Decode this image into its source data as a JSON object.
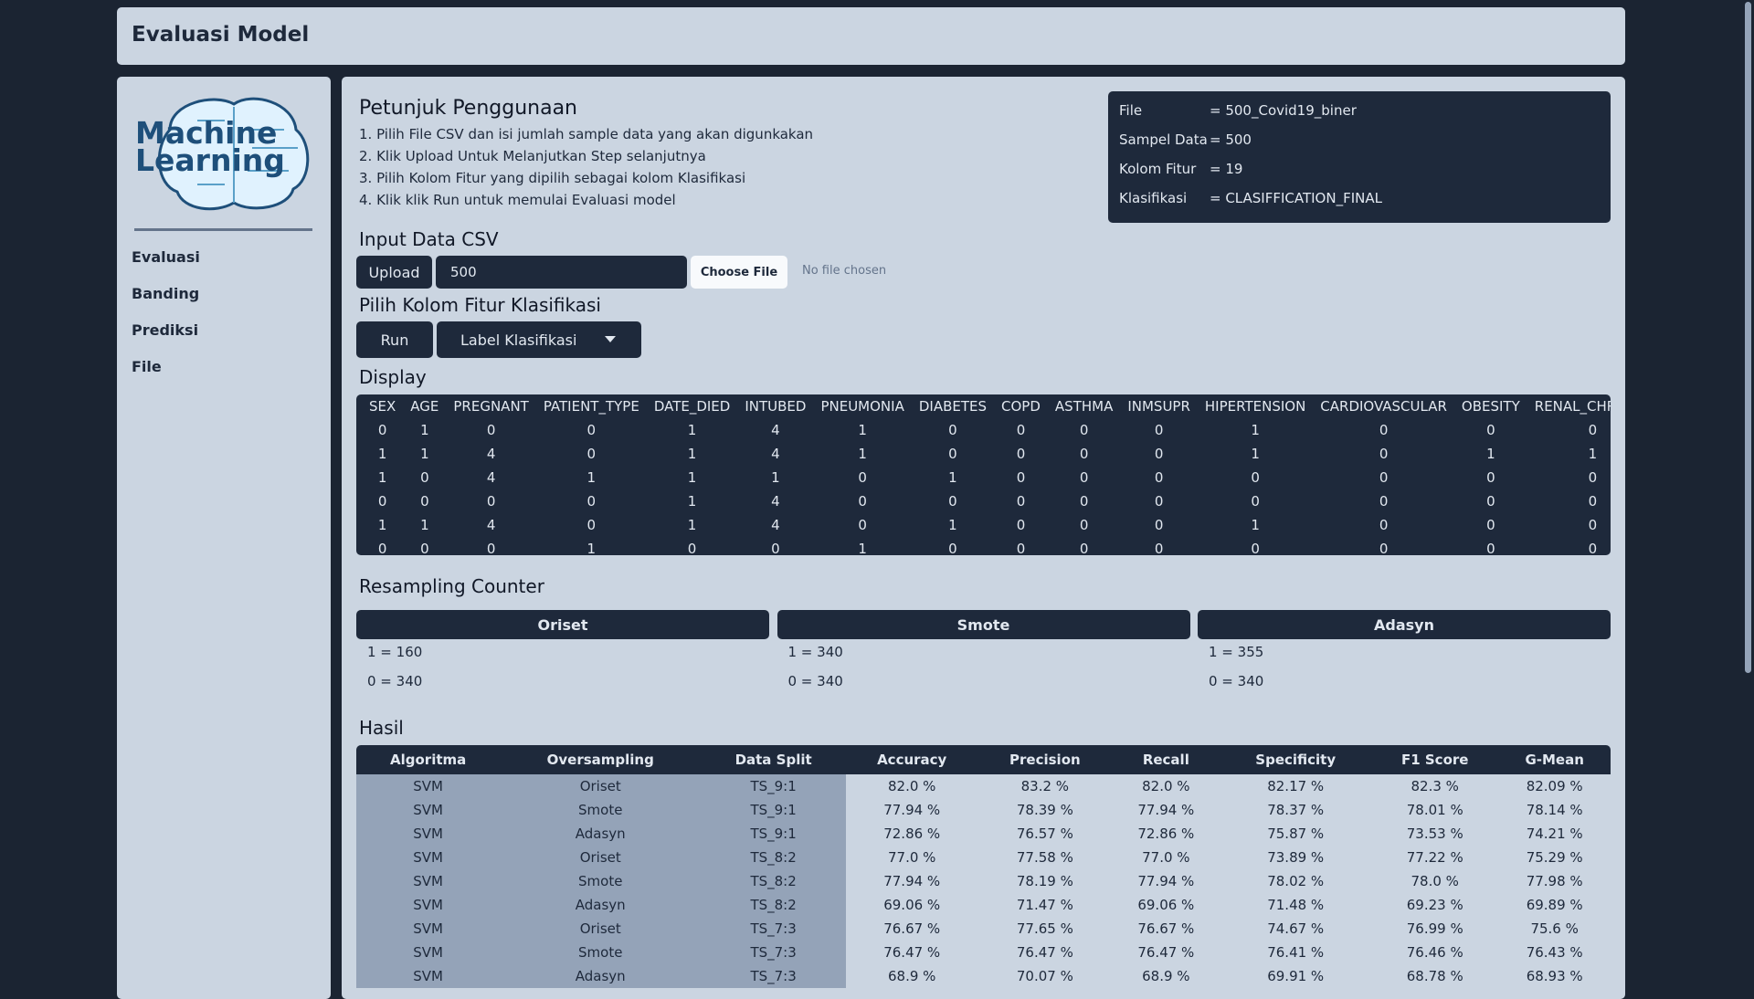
{
  "header": {
    "title": "Evaluasi Model"
  },
  "sidebar": {
    "logo": [
      "Machine",
      "Learning"
    ],
    "nav": [
      "Evaluasi",
      "Banding",
      "Prediksi",
      "File"
    ]
  },
  "guide": {
    "title": "Petunjuk Penggunaan",
    "steps": [
      "1. Pilih File CSV dan isi jumlah sample data yang akan digunkakan",
      "2. Klik Upload Untuk Melanjutkan Step selanjutnya",
      "3. Pilih Kolom Fitur yang dipilih sebagai kolom Klasifikasi",
      "4. Klik klik Run untuk memulai Evaluasi model"
    ]
  },
  "info": {
    "rows": [
      [
        "File",
        "= 500_Covid19_biner"
      ],
      [
        "Sampel Data",
        "= 500"
      ],
      [
        "Kolom Fitur",
        "= 19"
      ],
      [
        "Klasifikasi",
        "= CLASIFFICATION_FINAL"
      ]
    ]
  },
  "input": {
    "title": "Input Data CSV",
    "upload_button": "Upload",
    "input_value": "500",
    "choose_file": "Choose File",
    "no_file": "No file chosen"
  },
  "features": {
    "title": "Pilih Kolom Fitur Klasifikasi",
    "run_button": "Run",
    "dropdown": "Label Klasifikasi"
  },
  "display": {
    "title": "Display",
    "columns": [
      "SEX",
      "AGE",
      "PREGNANT",
      "PATIENT_TYPE",
      "DATE_DIED",
      "INTUBED",
      "PNEUMONIA",
      "DIABETES",
      "COPD",
      "ASTHMA",
      "INMSUPR",
      "HIPERTENSION",
      "CARDIOVASCULAR",
      "OBESITY",
      "RENAL_CHRONIC"
    ],
    "rows": [
      [
        0,
        1,
        0,
        0,
        1,
        4,
        1,
        0,
        0,
        0,
        0,
        1,
        0,
        0,
        0
      ],
      [
        1,
        1,
        4,
        0,
        1,
        4,
        1,
        0,
        0,
        0,
        0,
        1,
        0,
        1,
        1
      ],
      [
        1,
        0,
        4,
        1,
        1,
        1,
        0,
        1,
        0,
        0,
        0,
        0,
        0,
        0,
        0
      ],
      [
        0,
        0,
        0,
        0,
        1,
        4,
        0,
        0,
        0,
        0,
        0,
        0,
        0,
        0,
        0
      ],
      [
        1,
        1,
        4,
        0,
        1,
        4,
        0,
        1,
        0,
        0,
        0,
        1,
        0,
        0,
        0
      ],
      [
        0,
        0,
        0,
        1,
        0,
        0,
        1,
        0,
        0,
        0,
        0,
        0,
        0,
        0,
        0
      ]
    ]
  },
  "resampling": {
    "title": "Resampling Counter",
    "groups": [
      {
        "name": "Oriset",
        "lines": [
          "1 = 160",
          "0 = 340"
        ]
      },
      {
        "name": "Smote",
        "lines": [
          "1 = 340",
          "0 = 340"
        ]
      },
      {
        "name": "Adasyn",
        "lines": [
          "1 = 355",
          "0 = 340"
        ]
      }
    ]
  },
  "results": {
    "title": "Hasil",
    "columns": [
      "Algoritma",
      "Oversampling",
      "Data Split",
      "Accuracy",
      "Precision",
      "Recall",
      "Specificity",
      "F1 Score",
      "G-Mean"
    ],
    "rows": [
      [
        "SVM",
        "Oriset",
        "TS_9:1",
        "82.0 %",
        "83.2 %",
        "82.0 %",
        "82.17 %",
        "82.3 %",
        "82.09 %"
      ],
      [
        "SVM",
        "Smote",
        "TS_9:1",
        "77.94 %",
        "78.39 %",
        "77.94 %",
        "78.37 %",
        "78.01 %",
        "78.14 %"
      ],
      [
        "SVM",
        "Adasyn",
        "TS_9:1",
        "72.86 %",
        "76.57 %",
        "72.86 %",
        "75.87 %",
        "73.53 %",
        "74.21 %"
      ],
      [
        "SVM",
        "Oriset",
        "TS_8:2",
        "77.0 %",
        "77.58 %",
        "77.0 %",
        "73.89 %",
        "77.22 %",
        "75.29 %"
      ],
      [
        "SVM",
        "Smote",
        "TS_8:2",
        "77.94 %",
        "78.19 %",
        "77.94 %",
        "78.02 %",
        "78.0 %",
        "77.98 %"
      ],
      [
        "SVM",
        "Adasyn",
        "TS_8:2",
        "69.06 %",
        "71.47 %",
        "69.06 %",
        "71.48 %",
        "69.23 %",
        "69.89 %"
      ],
      [
        "SVM",
        "Oriset",
        "TS_7:3",
        "76.67 %",
        "77.65 %",
        "76.67 %",
        "74.67 %",
        "76.99 %",
        "75.6 %"
      ],
      [
        "SVM",
        "Smote",
        "TS_7:3",
        "76.47 %",
        "76.47 %",
        "76.47 %",
        "76.41 %",
        "76.46 %",
        "76.43 %"
      ],
      [
        "SVM",
        "Adasyn",
        "TS_7:3",
        "68.9 %",
        "70.07 %",
        "68.9 %",
        "69.91 %",
        "68.78 %",
        "68.93 %"
      ]
    ]
  }
}
